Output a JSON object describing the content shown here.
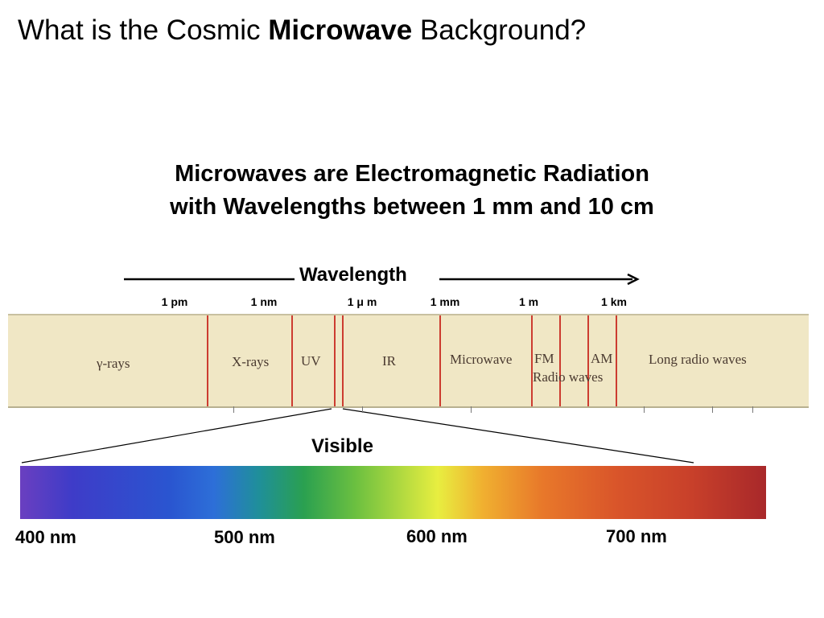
{
  "title": {
    "prefix": "What is the Cosmic ",
    "bold": "Microwave",
    "suffix": " Background?"
  },
  "subtitle": {
    "line1": "Microwaves are Electromagnetic Radiation",
    "line2": "with Wavelengths between 1 mm and 10 cm"
  },
  "wavelength_axis": {
    "label": "Wavelength",
    "scale_labels": [
      "1 pm",
      "1 nm",
      "1 μ m",
      "1 mm",
      "1 m",
      "1 km"
    ]
  },
  "spectrum_bands": {
    "gamma": "γ-rays",
    "xrays": "X-rays",
    "uv": "UV",
    "ir": "IR",
    "microwave": "Microwave",
    "fm": "FM",
    "am": "AM",
    "radio_waves": "Radio waves",
    "long_radio": "Long radio waves"
  },
  "visible": {
    "label": "Visible",
    "nm_labels": [
      "400 nm",
      "500 nm",
      "600 nm",
      "700 nm"
    ]
  },
  "colors": {
    "band_divider": "#cc3c30",
    "spectrum_background": "#f0e7c5"
  }
}
